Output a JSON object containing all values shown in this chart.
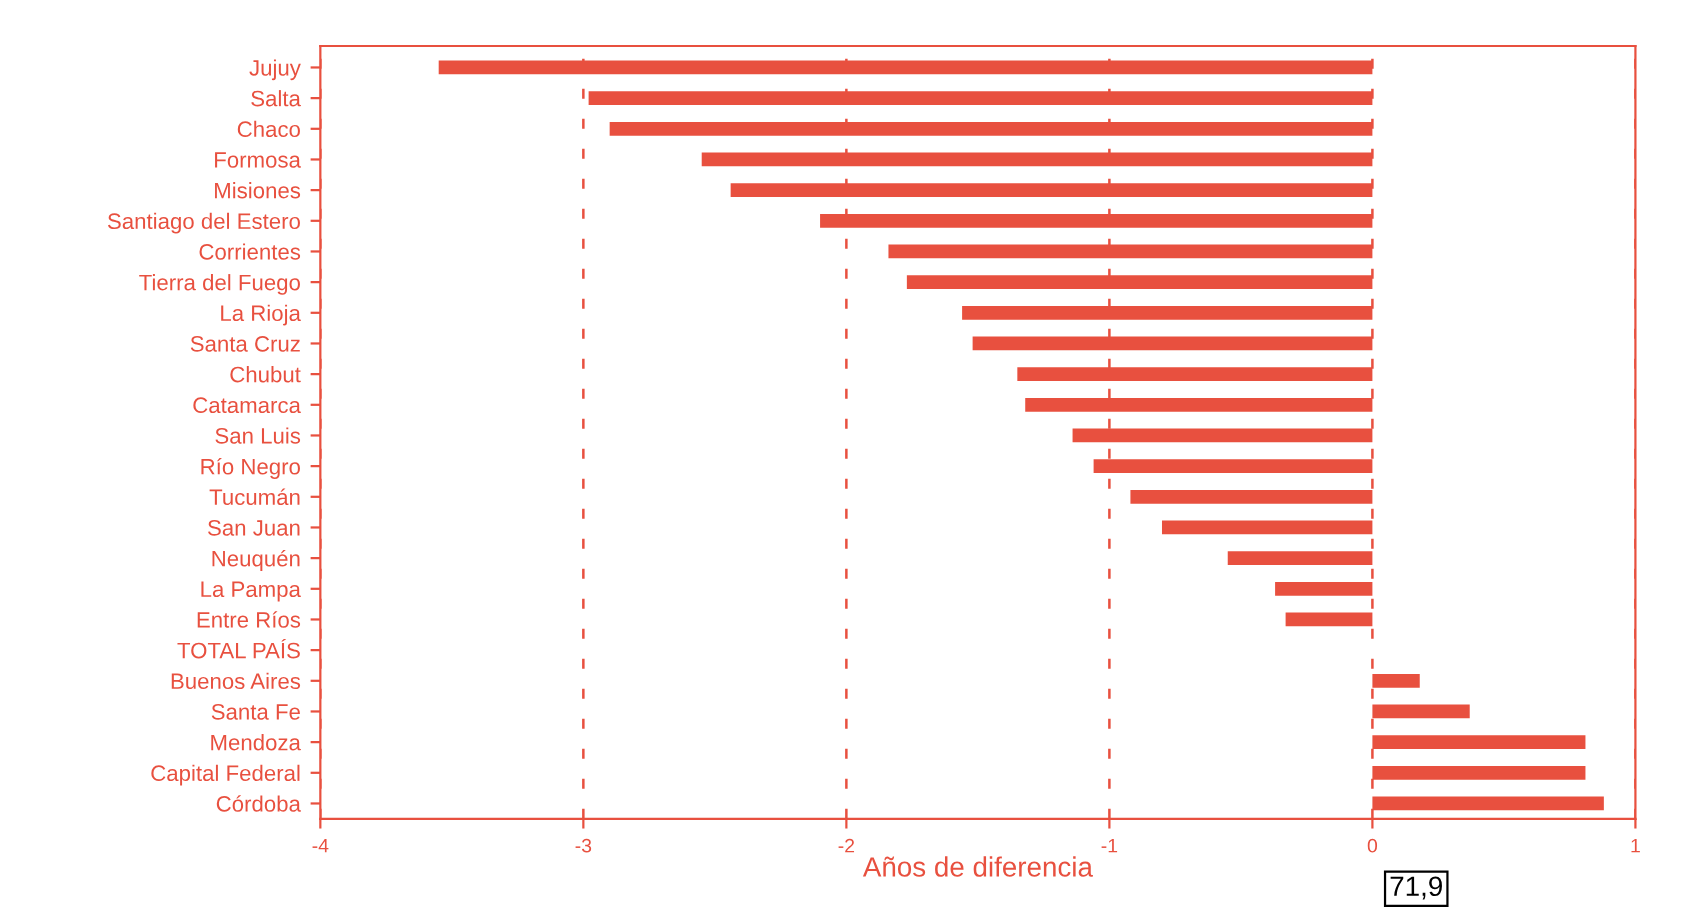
{
  "chart_data": {
    "type": "bar",
    "orientation": "horizontal",
    "xlabel": "Años de diferencia",
    "categories": [
      "Jujuy",
      "Salta",
      "Chaco",
      "Formosa",
      "Misiones",
      "Santiago del Estero",
      "Corrientes",
      "Tierra del Fuego",
      "La Rioja",
      "Santa Cruz",
      "Chubut",
      "Catamarca",
      "San Luis",
      "Río Negro",
      "Tucumán",
      "San Juan",
      "Neuquén",
      "La Pampa",
      "Entre Ríos",
      "TOTAL PAÍS",
      "Buenos Aires",
      "Santa Fe",
      "Mendoza",
      "Capital Federal",
      "Córdoba"
    ],
    "values": [
      -3.55,
      -2.98,
      -2.9,
      -2.55,
      -2.44,
      -2.1,
      -1.84,
      -1.77,
      -1.56,
      -1.52,
      -1.35,
      -1.32,
      -1.14,
      -1.06,
      -0.92,
      -0.8,
      -0.55,
      -0.37,
      -0.33,
      0,
      0.18,
      0.37,
      0.81,
      0.81,
      0.88
    ],
    "color": "#e8503f",
    "xlim": [
      -4,
      1
    ],
    "xticks": [
      -4,
      -3,
      -2,
      -1,
      0,
      1
    ],
    "grid": "x",
    "annotations": [
      "71,9"
    ]
  }
}
